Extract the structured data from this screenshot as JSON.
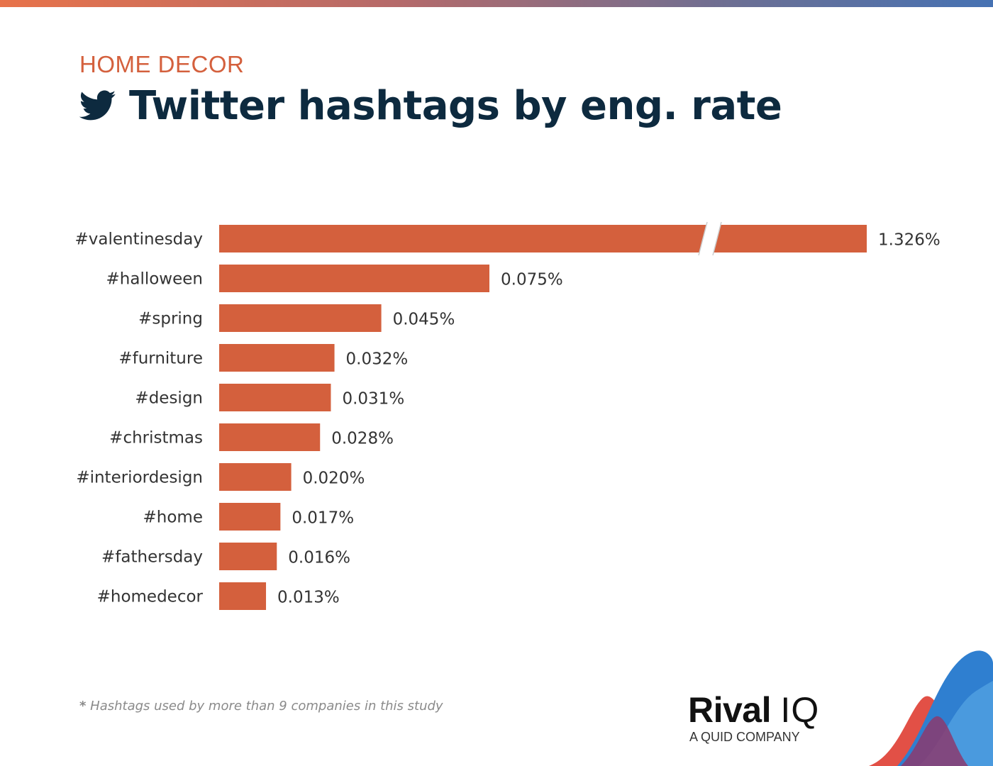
{
  "header": {
    "category": "HOME DECOR",
    "title": "Twitter hashtags by eng. rate"
  },
  "chart_data": {
    "type": "bar",
    "orientation": "horizontal",
    "title": "Twitter hashtags by eng. rate",
    "categories": [
      "#valentinesday",
      "#halloween",
      "#spring",
      "#furniture",
      "#design",
      "#christmas",
      "#interiordesign",
      "#home",
      "#fathersday",
      "#homedecor"
    ],
    "values": [
      1.326,
      0.075,
      0.045,
      0.032,
      0.031,
      0.028,
      0.02,
      0.017,
      0.016,
      0.013
    ],
    "value_labels": [
      "1.326%",
      "0.075%",
      "0.045%",
      "0.032%",
      "0.031%",
      "0.028%",
      "0.020%",
      "0.017%",
      "0.016%",
      "0.013%"
    ],
    "unit": "%",
    "axis_break": {
      "bar_index": 0,
      "note": "first bar is truncated with a break mark"
    },
    "xlabel": "",
    "ylabel": "",
    "grid": false,
    "bar_color": "#d4603d"
  },
  "footnote": {
    "star": "*",
    "text": "Hashtags used by more than 9 companies in this study"
  },
  "brand": {
    "name_bold": "Rival",
    "name_light": "IQ",
    "tagline": "A QUID COMPANY"
  }
}
